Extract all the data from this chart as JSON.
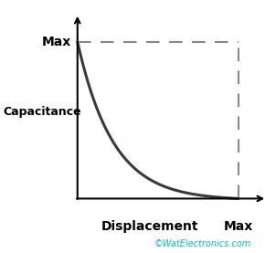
{
  "background_color": "#ffffff",
  "curve_color": "#3a3a3a",
  "dashed_color": "#888888",
  "axis_color": "#000000",
  "text_color": "#000000",
  "watermark_color": "#00bcd4",
  "ylabel_text": "Capacitance",
  "xlabel_text": "Displacement",
  "max_x_label": "Max",
  "max_y_label": "Max",
  "watermark": "©WatElectronics.com",
  "figsize": [
    3.02,
    2.77
  ],
  "dpi": 100
}
